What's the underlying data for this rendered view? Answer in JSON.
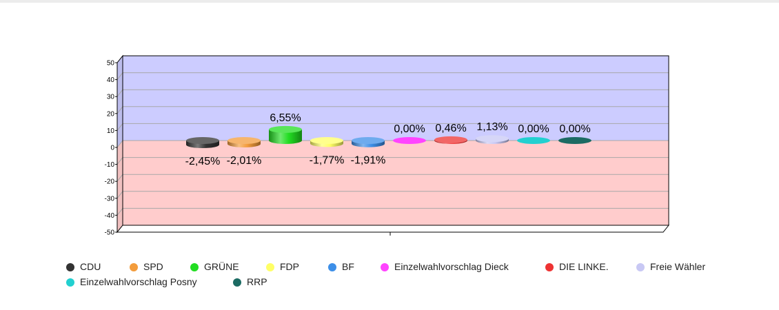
{
  "chart_data": {
    "type": "bar",
    "categories": [
      "CDU",
      "SPD",
      "GRÜNE",
      "FDP",
      "BF",
      "Einzelwahlvorschlag Dieck",
      "DIE LINKE.",
      "Freie Wähler",
      "Einzelwahlvorschlag Posny",
      "RRP"
    ],
    "values": [
      -2.45,
      -2.01,
      6.55,
      -1.77,
      -1.91,
      0.0,
      0.46,
      1.13,
      0.0,
      0.0
    ],
    "value_labels": [
      "-2,45%",
      "-2,01%",
      "6,55%",
      "-1,77%",
      "-1,91%",
      "0,00%",
      "0,46%",
      "1,13%",
      "0,00%",
      "0,00%"
    ],
    "colors": [
      "#333333",
      "#f39c3c",
      "#22dd22",
      "#ffff66",
      "#3d8fe8",
      "#ff44ff",
      "#ee3333",
      "#c8c8f4",
      "#22d0d0",
      "#1c6b63"
    ],
    "ylim": [
      -50,
      50
    ],
    "yticks": [
      "50",
      "40",
      "30",
      "20",
      "10",
      "0",
      "-10",
      "-20",
      "-30",
      "-40",
      "-50"
    ],
    "positive_background": "#ccccff",
    "negative_background": "#ffcccc",
    "grid": true,
    "legend_position": "bottom",
    "title": "",
    "xlabel": "",
    "ylabel": ""
  }
}
